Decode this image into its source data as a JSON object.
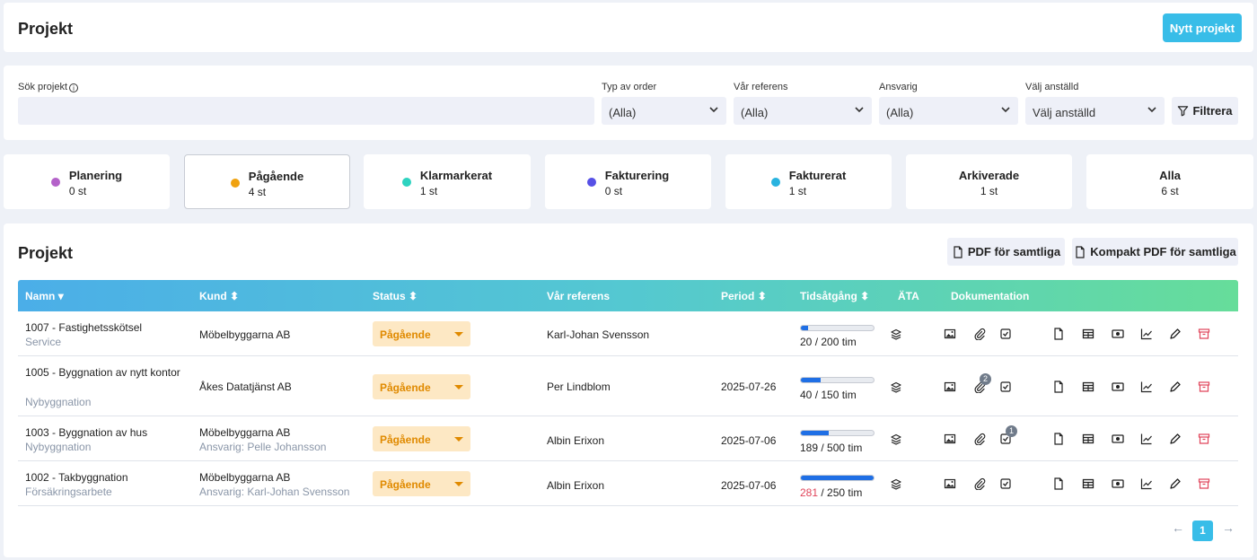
{
  "header": {
    "title": "Projekt",
    "new_button": "Nytt projekt"
  },
  "filters": {
    "search_label": "Sök projekt",
    "search_value": "",
    "order_type": {
      "label": "Typ av order",
      "value": "(Alla)"
    },
    "reference": {
      "label": "Vår referens",
      "value": "(Alla)"
    },
    "responsible": {
      "label": "Ansvarig",
      "value": "(Alla)"
    },
    "employee": {
      "label": "Välj anställd",
      "value": "Välj anställd"
    },
    "filter_button": "Filtrera"
  },
  "status_cards": [
    {
      "title": "Planering",
      "count": "0 st",
      "color": "#b462c9"
    },
    {
      "title": "Pågående",
      "count": "4 st",
      "color": "#f0a20f"
    },
    {
      "title": "Klarmarkerat",
      "count": "1 st",
      "color": "#2ed3c0"
    },
    {
      "title": "Fakturering",
      "count": "0 st",
      "color": "#5650e6"
    },
    {
      "title": "Fakturerat",
      "count": "1 st",
      "color": "#29b3df"
    },
    {
      "title": "Arkiverade",
      "count": "1 st"
    },
    {
      "title": "Alla",
      "count": "6 st"
    }
  ],
  "main": {
    "title": "Projekt",
    "pdf_all": "PDF för samtliga",
    "pdf_compact": "Kompakt PDF för samtliga",
    "columns": [
      "Namn",
      "Kund",
      "Status",
      "Vår referens",
      "Period",
      "Tidsåtgång",
      "ÄTA",
      "Dokumentation"
    ],
    "rows": [
      {
        "name": "1007 - Fastighetsskötsel",
        "type": "Service",
        "customer": "Möbelbyggarna AB",
        "customer_sub": "",
        "status": "Pågående",
        "reference": "Karl-Johan Svensson",
        "period": "",
        "used": "20",
        "total": "/ 200 tim",
        "progress": 0.1,
        "attachments": "",
        "checklist": ""
      },
      {
        "name": "1005 - Byggnation av nytt kontor",
        "type": "Nybyggnation",
        "customer": "Åkes Datatjänst AB",
        "customer_sub": "",
        "status": "Pågående",
        "reference": "Per Lindblom",
        "period": "2025-07-26",
        "used": "40",
        "total": "/ 150 tim",
        "progress": 0.27,
        "attachments": "2",
        "checklist": ""
      },
      {
        "name": "1003 - Byggnation av hus",
        "type": "Nybyggnation",
        "customer": "Möbelbyggarna AB",
        "customer_sub": "Ansvarig: Pelle Johansson",
        "status": "Pågående",
        "reference": "Albin Erixon",
        "period": "2025-07-06",
        "used": "189",
        "total": "/ 500 tim",
        "progress": 0.378,
        "attachments": "",
        "checklist": "1"
      },
      {
        "name": "1002 - Takbyggnation",
        "type": "Försäkringsarbete",
        "customer": "Möbelbyggarna AB",
        "customer_sub": "Ansvarig: Karl-Johan Svensson",
        "status": "Pågående",
        "reference": "Albin Erixon",
        "period": "2025-07-06",
        "used": "281",
        "total": "/ 250 tim",
        "progress": 1.0,
        "attachments": "",
        "checklist": ""
      }
    ]
  },
  "pagination": {
    "current": "1",
    "prev": "←",
    "next": "→"
  }
}
